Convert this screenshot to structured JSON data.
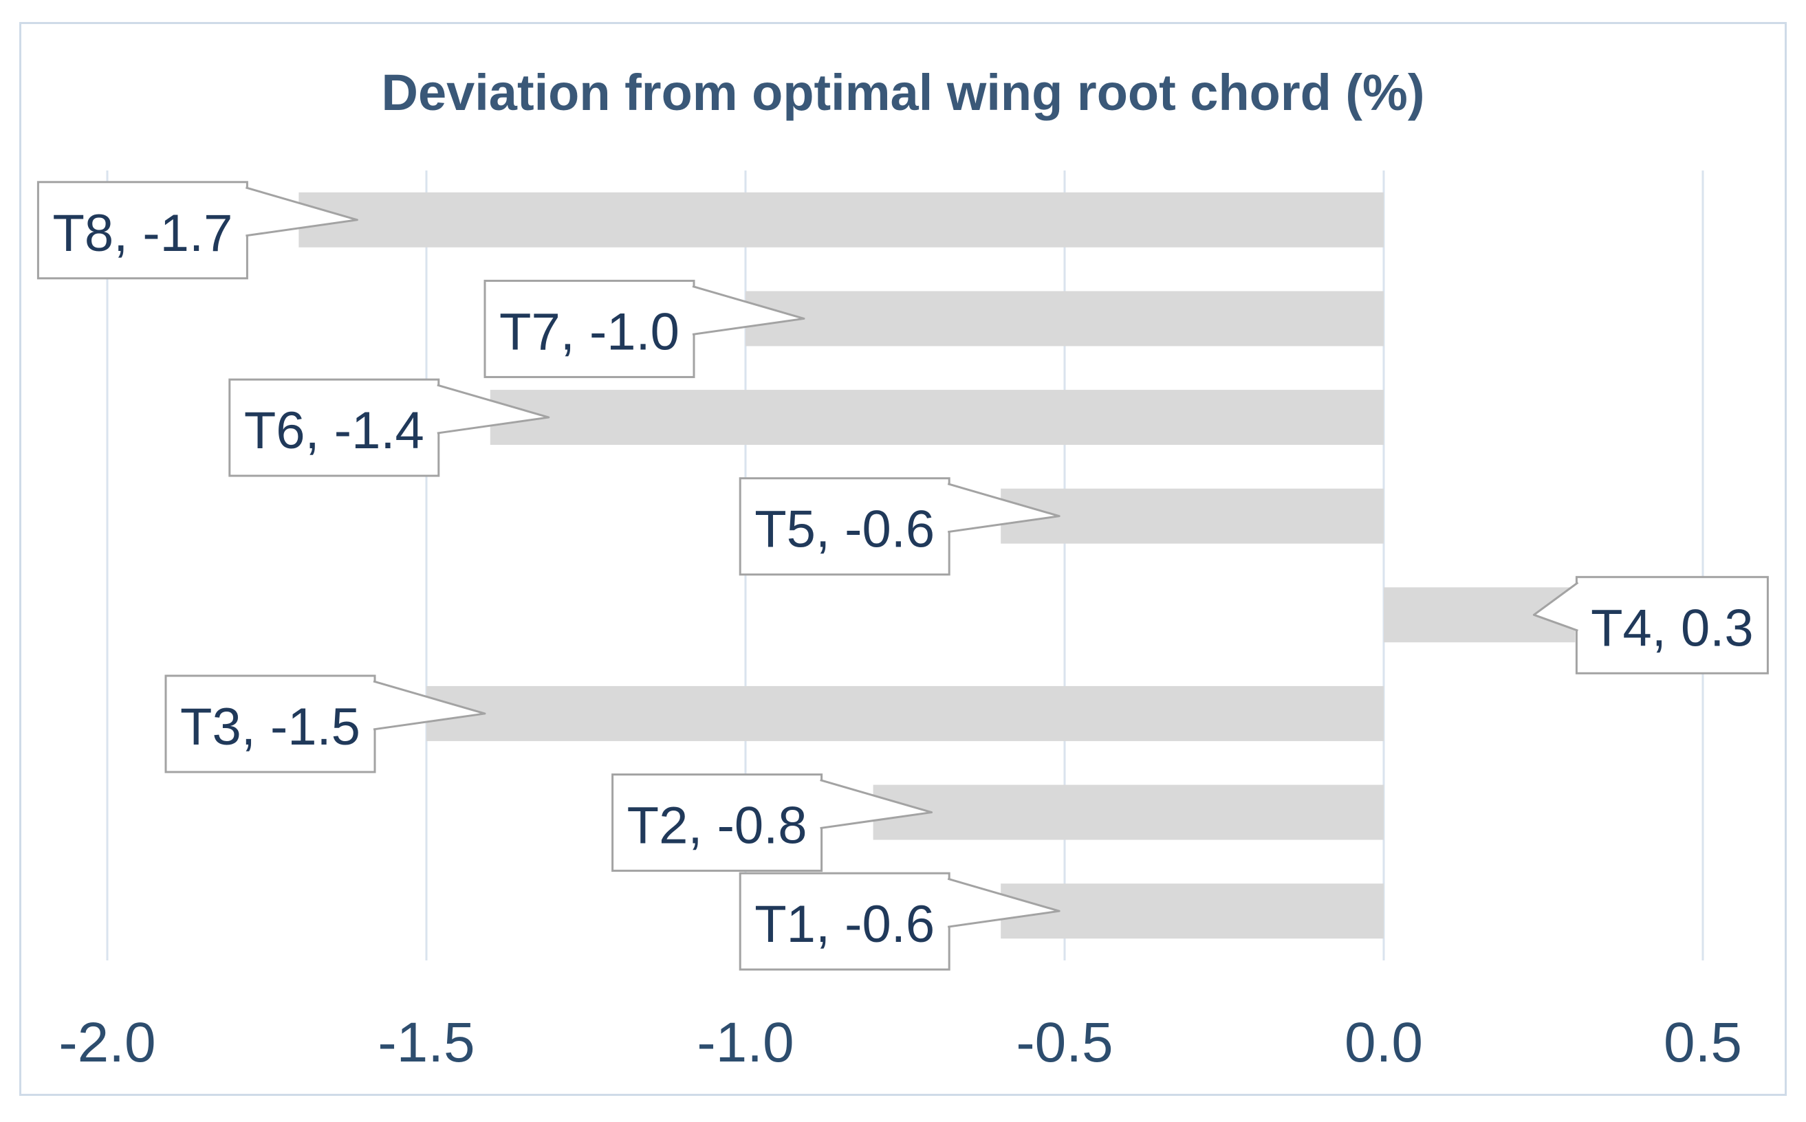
{
  "chart_data": {
    "type": "bar",
    "orientation": "horizontal",
    "title": "Deviation from optimal wing root chord (%)",
    "categories_top_to_bottom": [
      "T8",
      "T7",
      "T6",
      "T5",
      "T4",
      "T3",
      "T2",
      "T1"
    ],
    "values_top_to_bottom": [
      -1.7,
      -1.0,
      -1.4,
      -0.6,
      0.3,
      -1.5,
      -0.8,
      -0.6
    ],
    "data_labels_top_to_bottom": [
      "T8, -1.7",
      "T7, -1.0",
      "T6, -1.4",
      "T5, -0.6",
      "T4, 0.3",
      "T3, -1.5",
      "T2, -0.8",
      "T1, -0.6"
    ],
    "xlabel": "",
    "ylabel": "",
    "xlim": [
      -2.0,
      0.5
    ],
    "x_tick_values": [
      -2.0,
      -1.5,
      -1.0,
      -0.5,
      0.0,
      0.5
    ],
    "x_tick_labels": [
      "-2.0",
      "-1.5",
      "-1.0",
      "-0.5",
      "0.0",
      "0.5"
    ],
    "grid": "vertical-gridlines-on",
    "legend": "none",
    "colors": {
      "bar_fill": "#d9d9d9",
      "gridline": "#dae3ee",
      "chart_border": "#cfdbe8",
      "callout_fill": "#ffffff",
      "callout_border": "#a3a3a3",
      "callout_text": "#20395a",
      "tick_text": "#2d4d6e",
      "title_text": "#3a5878",
      "background": "#ffffff"
    }
  }
}
